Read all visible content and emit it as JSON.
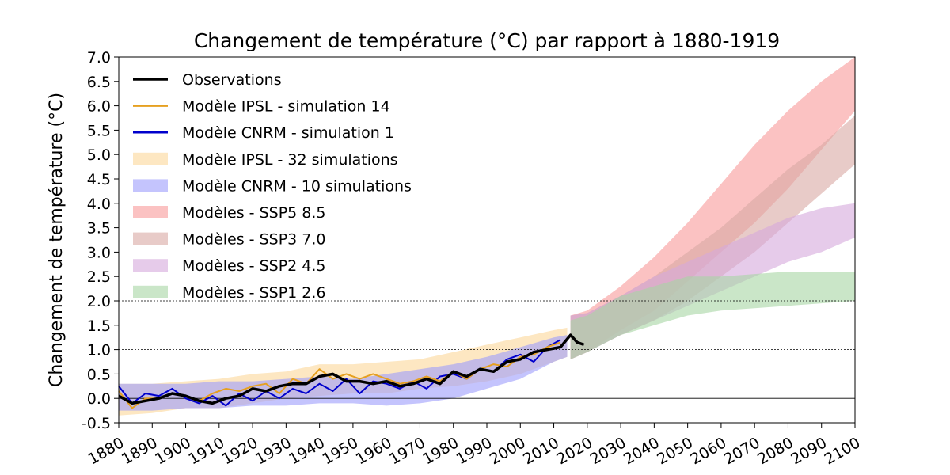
{
  "chart_data": {
    "type": "line",
    "title": "Changement de température (°C) par rapport à 1880-1919",
    "xlabel": "",
    "ylabel": "Changement de température (°C)",
    "xlim": [
      1880,
      2100
    ],
    "ylim": [
      -0.5,
      7.0
    ],
    "x_ticks": [
      1880,
      1890,
      1900,
      1910,
      1920,
      1930,
      1940,
      1950,
      1960,
      1970,
      1980,
      1990,
      2000,
      2010,
      2020,
      2030,
      2040,
      2050,
      2060,
      2070,
      2080,
      2090,
      2100
    ],
    "y_ticks": [
      "-0.5",
      "0.0",
      "0.5",
      "1.0",
      "1.5",
      "2.0",
      "2.5",
      "3.0",
      "3.5",
      "4.0",
      "4.5",
      "5.0",
      "5.5",
      "6.0",
      "6.5",
      "7.0"
    ],
    "reference_lines": [
      {
        "y": 0.0,
        "style": "solid"
      },
      {
        "y": 1.0,
        "style": "dotted"
      },
      {
        "y": 2.0,
        "style": "dotted"
      }
    ],
    "grid": false,
    "legend_position": "top-left",
    "series": [
      {
        "name": "Observations",
        "kind": "line",
        "color": "#000000",
        "x": [
          1880,
          1884,
          1888,
          1892,
          1896,
          1900,
          1904,
          1908,
          1912,
          1916,
          1920,
          1924,
          1928,
          1932,
          1936,
          1940,
          1944,
          1948,
          1952,
          1956,
          1960,
          1964,
          1968,
          1972,
          1976,
          1980,
          1984,
          1988,
          1992,
          1996,
          2000,
          2004,
          2008,
          2012,
          2015,
          2017,
          2019
        ],
        "y": [
          0.05,
          -0.1,
          -0.05,
          0.0,
          0.1,
          0.05,
          -0.05,
          -0.1,
          0.0,
          0.05,
          0.2,
          0.15,
          0.25,
          0.3,
          0.3,
          0.45,
          0.5,
          0.35,
          0.35,
          0.3,
          0.35,
          0.25,
          0.3,
          0.4,
          0.3,
          0.55,
          0.45,
          0.6,
          0.55,
          0.75,
          0.8,
          0.95,
          1.0,
          1.05,
          1.3,
          1.15,
          1.1
        ]
      },
      {
        "name": "Modèle IPSL - simulation 14",
        "kind": "line",
        "color": "#e6a020",
        "x": [
          1880,
          1884,
          1888,
          1892,
          1896,
          1900,
          1904,
          1908,
          1912,
          1916,
          1920,
          1924,
          1928,
          1932,
          1936,
          1940,
          1944,
          1948,
          1952,
          1956,
          1960,
          1964,
          1968,
          1972,
          1976,
          1980,
          1984,
          1988,
          1992,
          1996,
          2000,
          2004,
          2008,
          2012
        ],
        "y": [
          0.15,
          -0.2,
          0.0,
          0.0,
          0.1,
          0.05,
          -0.05,
          0.1,
          0.2,
          0.15,
          0.25,
          0.3,
          0.1,
          0.4,
          0.3,
          0.6,
          0.4,
          0.5,
          0.4,
          0.5,
          0.4,
          0.3,
          0.35,
          0.45,
          0.35,
          0.55,
          0.4,
          0.6,
          0.7,
          0.65,
          0.85,
          0.9,
          1.05,
          1.15
        ]
      },
      {
        "name": "Modèle CNRM - simulation 1",
        "kind": "line",
        "color": "#0000cc",
        "x": [
          1880,
          1884,
          1888,
          1892,
          1896,
          1900,
          1904,
          1908,
          1912,
          1916,
          1920,
          1924,
          1928,
          1932,
          1936,
          1940,
          1944,
          1948,
          1952,
          1956,
          1960,
          1964,
          1968,
          1972,
          1976,
          1980,
          1984,
          1988,
          1992,
          1996,
          2000,
          2004,
          2008,
          2012
        ],
        "y": [
          0.25,
          -0.1,
          0.1,
          0.05,
          0.2,
          0.0,
          -0.1,
          0.05,
          -0.15,
          0.1,
          -0.05,
          0.15,
          0.0,
          0.2,
          0.1,
          0.3,
          0.15,
          0.4,
          0.1,
          0.35,
          0.3,
          0.2,
          0.35,
          0.2,
          0.45,
          0.5,
          0.4,
          0.6,
          0.55,
          0.8,
          0.9,
          0.75,
          1.05,
          1.2
        ]
      },
      {
        "name": "Modèle IPSL - 32 simulations",
        "kind": "band",
        "color": "#fbd79a",
        "x": [
          1880,
          1890,
          1900,
          1910,
          1920,
          1930,
          1940,
          1950,
          1960,
          1970,
          1980,
          1990,
          2000,
          2010,
          2014
        ],
        "lower": [
          -0.35,
          -0.3,
          -0.2,
          -0.2,
          -0.1,
          0.0,
          0.05,
          0.1,
          0.1,
          0.2,
          0.25,
          0.35,
          0.5,
          0.75,
          0.85
        ],
        "upper": [
          0.3,
          0.3,
          0.35,
          0.4,
          0.5,
          0.55,
          0.7,
          0.7,
          0.75,
          0.8,
          0.95,
          1.1,
          1.25,
          1.4,
          1.45
        ]
      },
      {
        "name": "Modèle CNRM - 10 simulations",
        "kind": "band",
        "color": "#9d9dfb",
        "x": [
          1880,
          1890,
          1900,
          1910,
          1920,
          1930,
          1940,
          1950,
          1960,
          1970,
          1980,
          1990,
          2000,
          2010,
          2014
        ],
        "lower": [
          -0.25,
          -0.25,
          -0.2,
          -0.2,
          -0.15,
          -0.15,
          -0.1,
          -0.1,
          -0.15,
          -0.1,
          0.0,
          0.2,
          0.4,
          0.75,
          0.85
        ],
        "upper": [
          0.3,
          0.3,
          0.3,
          0.35,
          0.35,
          0.4,
          0.45,
          0.4,
          0.5,
          0.6,
          0.7,
          0.85,
          1.05,
          1.25,
          1.3
        ]
      },
      {
        "name": "Modèles - SSP5 8.5",
        "kind": "band",
        "color": "#f89a9a",
        "x": [
          2015,
          2020,
          2030,
          2040,
          2050,
          2060,
          2070,
          2080,
          2090,
          2100
        ],
        "lower": [
          0.8,
          0.95,
          1.4,
          1.8,
          2.4,
          3.0,
          3.6,
          4.3,
          5.1,
          5.9
        ],
        "upper": [
          1.7,
          1.8,
          2.3,
          2.9,
          3.6,
          4.4,
          5.2,
          5.9,
          6.5,
          7.0
        ]
      },
      {
        "name": "Modèles - SSP3 7.0",
        "kind": "band",
        "color": "#d8a8a4",
        "x": [
          2015,
          2020,
          2030,
          2040,
          2050,
          2060,
          2070,
          2080,
          2090,
          2100
        ],
        "lower": [
          0.8,
          0.95,
          1.3,
          1.6,
          2.0,
          2.5,
          3.0,
          3.6,
          4.2,
          4.8
        ],
        "upper": [
          1.7,
          1.75,
          2.1,
          2.5,
          3.0,
          3.5,
          4.1,
          4.7,
          5.2,
          5.8
        ]
      },
      {
        "name": "Modèles - SSP2 4.5",
        "kind": "band",
        "color": "#d6a8dc",
        "x": [
          2015,
          2020,
          2030,
          2040,
          2050,
          2060,
          2070,
          2080,
          2090,
          2100
        ],
        "lower": [
          0.8,
          0.95,
          1.3,
          1.6,
          1.9,
          2.2,
          2.5,
          2.8,
          3.0,
          3.3
        ],
        "upper": [
          1.7,
          1.75,
          2.1,
          2.5,
          2.8,
          3.1,
          3.4,
          3.7,
          3.9,
          4.0
        ]
      },
      {
        "name": "Modèles - SSP1 2.6",
        "kind": "band",
        "color": "#a7d6a4",
        "x": [
          2015,
          2020,
          2030,
          2040,
          2050,
          2060,
          2070,
          2080,
          2090,
          2100
        ],
        "lower": [
          0.8,
          0.95,
          1.3,
          1.5,
          1.7,
          1.8,
          1.85,
          1.9,
          1.95,
          2.0
        ],
        "upper": [
          1.6,
          1.7,
          2.1,
          2.3,
          2.5,
          2.5,
          2.55,
          2.6,
          2.6,
          2.6
        ]
      }
    ]
  }
}
